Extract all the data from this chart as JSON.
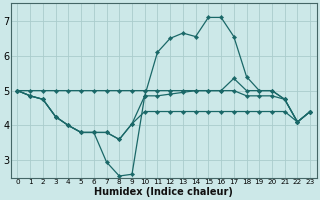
{
  "background_color": "#cce8e8",
  "grid_color": "#aacccc",
  "line_color": "#1a6868",
  "xlabel": "Humidex (Indice chaleur)",
  "xlim": [
    -0.5,
    23.5
  ],
  "ylim": [
    2.5,
    7.5
  ],
  "yticks": [
    3,
    4,
    5,
    6,
    7
  ],
  "xticks": [
    0,
    1,
    2,
    3,
    4,
    5,
    6,
    7,
    8,
    9,
    10,
    11,
    12,
    13,
    14,
    15,
    16,
    17,
    18,
    19,
    20,
    21,
    22,
    23
  ],
  "lines": [
    {
      "x": [
        0,
        1,
        2,
        3,
        4,
        5,
        6,
        7,
        8,
        9,
        10,
        11,
        12,
        13,
        14,
        15,
        16,
        17,
        18,
        19,
        20,
        21,
        22,
        23
      ],
      "y": [
        5.0,
        4.85,
        4.75,
        4.25,
        4.0,
        3.8,
        3.8,
        2.95,
        2.55,
        2.6,
        4.85,
        6.1,
        6.5,
        6.65,
        6.55,
        7.1,
        7.1,
        6.55,
        5.4,
        5.0,
        5.0,
        4.75,
        4.1,
        4.4
      ]
    },
    {
      "x": [
        0,
        1,
        2,
        3,
        4,
        5,
        6,
        7,
        8,
        9,
        10,
        11,
        12,
        13,
        14,
        15,
        16,
        17,
        18,
        19,
        20,
        21,
        22,
        23
      ],
      "y": [
        5.0,
        5.0,
        5.0,
        5.0,
        5.0,
        5.0,
        5.0,
        5.0,
        5.0,
        5.0,
        5.0,
        5.0,
        5.0,
        5.0,
        5.0,
        5.0,
        5.0,
        5.35,
        5.0,
        5.0,
        5.0,
        4.75,
        4.1,
        4.4
      ]
    },
    {
      "x": [
        0,
        1,
        2,
        3,
        4,
        5,
        6,
        7,
        8,
        9,
        10,
        11,
        12,
        13,
        14,
        15,
        16,
        17,
        18,
        19,
        20,
        21,
        22,
        23
      ],
      "y": [
        5.0,
        4.85,
        4.75,
        4.25,
        4.0,
        3.8,
        3.8,
        3.8,
        3.6,
        4.05,
        4.85,
        4.85,
        4.9,
        4.95,
        5.0,
        5.0,
        5.0,
        5.0,
        4.85,
        4.85,
        4.85,
        4.75,
        4.1,
        4.4
      ]
    },
    {
      "x": [
        0,
        1,
        2,
        3,
        4,
        5,
        6,
        7,
        8,
        9,
        10,
        11,
        12,
        13,
        14,
        15,
        16,
        17,
        18,
        19,
        20,
        21,
        22,
        23
      ],
      "y": [
        5.0,
        4.85,
        4.75,
        4.25,
        4.0,
        3.8,
        3.8,
        3.8,
        3.6,
        4.05,
        4.4,
        4.4,
        4.4,
        4.4,
        4.4,
        4.4,
        4.4,
        4.4,
        4.4,
        4.4,
        4.4,
        4.4,
        4.1,
        4.4
      ]
    }
  ]
}
